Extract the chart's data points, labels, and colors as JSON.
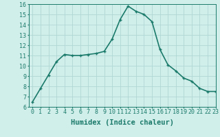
{
  "x": [
    0,
    1,
    2,
    3,
    4,
    5,
    6,
    7,
    8,
    9,
    10,
    11,
    12,
    13,
    14,
    15,
    16,
    17,
    18,
    19,
    20,
    21,
    22,
    23
  ],
  "y": [
    6.5,
    7.8,
    9.1,
    10.4,
    11.1,
    11.0,
    11.0,
    11.1,
    11.2,
    11.4,
    12.6,
    14.5,
    15.8,
    15.3,
    15.0,
    14.3,
    11.6,
    10.1,
    9.5,
    8.8,
    8.5,
    7.8,
    7.5,
    7.5
  ],
  "xlabel": "Humidex (Indice chaleur)",
  "ylim": [
    6,
    16
  ],
  "xlim": [
    -0.5,
    23
  ],
  "yticks": [
    6,
    7,
    8,
    9,
    10,
    11,
    12,
    13,
    14,
    15,
    16
  ],
  "xticks": [
    0,
    1,
    2,
    3,
    4,
    5,
    6,
    7,
    8,
    9,
    10,
    11,
    12,
    13,
    14,
    15,
    16,
    17,
    18,
    19,
    20,
    21,
    22,
    23
  ],
  "xtick_labels": [
    "0",
    "1",
    "2",
    "3",
    "4",
    "5",
    "6",
    "7",
    "8",
    "9",
    "10",
    "11",
    "12",
    "13",
    "14",
    "15",
    "16",
    "17",
    "18",
    "19",
    "20",
    "21",
    "22",
    "23"
  ],
  "line_color": "#1a7a6a",
  "marker": "+",
  "marker_size": 3,
  "line_width": 1.2,
  "bg_color": "#d0eeea",
  "grid_color": "#b0d8d4",
  "tick_label_fontsize": 6,
  "xlabel_fontsize": 7.5
}
